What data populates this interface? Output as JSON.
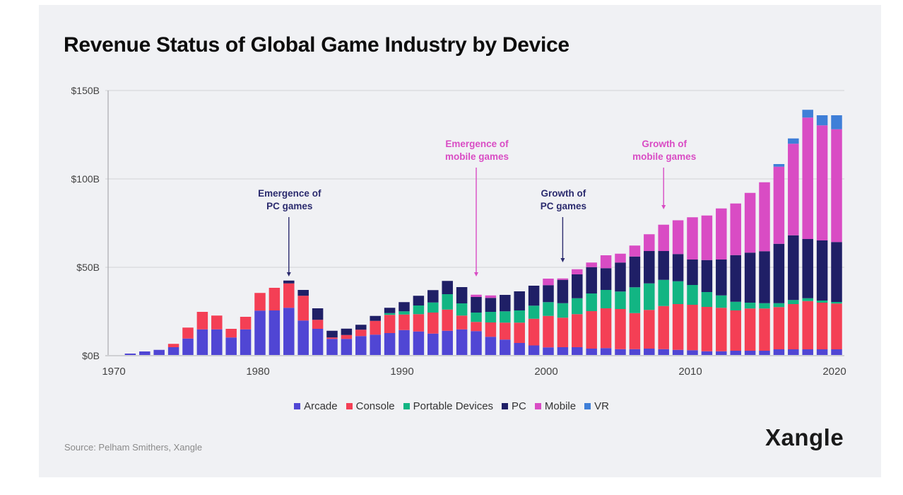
{
  "header": {
    "title": "Revenue Status of Global Game Industry by Device"
  },
  "footer": {
    "source": "Source: Pelham Smithers, Xangle",
    "logo": "Xangle"
  },
  "chart_data": {
    "type": "bar",
    "stacked": true,
    "title": "Revenue Status of Global Game Industry by Device",
    "xlabel": "",
    "ylabel": "",
    "ylim": [
      0,
      150
    ],
    "yticks": [
      0,
      50,
      100,
      150
    ],
    "ytick_labels": [
      "$0B",
      "$50B",
      "$100B",
      "$150B"
    ],
    "xticks": [
      1970,
      1980,
      1990,
      2000,
      2010,
      2020
    ],
    "xtick_labels": [
      "1970",
      "1980",
      "1990",
      "2000",
      "2010",
      "2020"
    ],
    "grid": true,
    "legend_position": "bottom-center",
    "unit": "USD billions",
    "categories": [
      1971,
      1972,
      1973,
      1974,
      1975,
      1976,
      1977,
      1978,
      1979,
      1980,
      1981,
      1982,
      1983,
      1984,
      1985,
      1986,
      1987,
      1988,
      1989,
      1990,
      1991,
      1992,
      1993,
      1994,
      1995,
      1996,
      1997,
      1998,
      1999,
      2000,
      2001,
      2002,
      2003,
      2004,
      2005,
      2006,
      2007,
      2008,
      2009,
      2010,
      2011,
      2012,
      2013,
      2014,
      2015,
      2016,
      2017,
      2018,
      2019,
      2020
    ],
    "series": [
      {
        "name": "Arcade",
        "color": "#5046d4",
        "values": [
          1.2,
          2.4,
          3.3,
          4.8,
          9.7,
          14.9,
          14.9,
          10.3,
          14.9,
          25.5,
          25.6,
          27.1,
          19.9,
          15.2,
          9.5,
          9.5,
          11.1,
          11.9,
          12.8,
          14.5,
          13.7,
          12.5,
          14.1,
          14.9,
          13.9,
          10.7,
          9.1,
          7.2,
          5.8,
          4.7,
          4.8,
          4.8,
          4.0,
          4.3,
          3.7,
          3.7,
          4.0,
          3.7,
          3.3,
          3.1,
          2.5,
          2.5,
          2.8,
          2.8,
          2.8,
          3.6,
          3.6,
          3.6,
          3.6,
          3.6
        ]
      },
      {
        "name": "Console",
        "color": "#f43f55",
        "values": [
          0,
          0,
          0,
          1.9,
          6.2,
          9.9,
          7.8,
          4.9,
          7.1,
          10.0,
          12.8,
          13.8,
          14.0,
          5.1,
          0.8,
          2.2,
          3.6,
          7.8,
          10.3,
          8.8,
          9.8,
          11.9,
          12.0,
          7.8,
          5.2,
          8.1,
          9.6,
          11.5,
          15.1,
          17.8,
          16.7,
          18.7,
          21.2,
          22.5,
          22.7,
          20.4,
          21.9,
          24.4,
          25.9,
          25.7,
          25.1,
          24.6,
          22.8,
          23.9,
          23.9,
          23.9,
          25.6,
          27.3,
          26.4,
          25.9
        ]
      },
      {
        "name": "Portable Devices",
        "color": "#12b583",
        "values": [
          0,
          0,
          0,
          0,
          0,
          0,
          0,
          0,
          0,
          0,
          0,
          0,
          0,
          0,
          0,
          0,
          0,
          0,
          1.0,
          1.8,
          4.9,
          5.7,
          8.7,
          6.9,
          5.3,
          6.0,
          6.4,
          6.9,
          7.4,
          7.8,
          8.2,
          9.0,
          10.0,
          10.4,
          9.9,
          14.6,
          15.0,
          14.8,
          12.9,
          11.2,
          8.4,
          7.0,
          4.9,
          3.3,
          3.0,
          2.2,
          2.3,
          1.6,
          1.2,
          0.9
        ]
      },
      {
        "name": "PC",
        "color": "#1f1f66",
        "values": [
          0,
          0,
          0,
          0,
          0,
          0,
          0,
          0,
          0,
          0,
          0,
          1.6,
          3.3,
          6.5,
          3.8,
          3.6,
          2.8,
          2.8,
          3.0,
          5.2,
          5.5,
          7.0,
          7.5,
          9.2,
          8.8,
          7.9,
          9.3,
          10.8,
          11.3,
          9.6,
          13.2,
          13.5,
          14.9,
          12.3,
          16.4,
          17.4,
          18.3,
          16.3,
          15.4,
          14.4,
          18.1,
          20.3,
          26.4,
          28.3,
          29.4,
          33.6,
          36.6,
          33.5,
          34.0,
          33.9
        ]
      },
      {
        "name": "Mobile",
        "color": "#d94cc4",
        "values": [
          0,
          0,
          0,
          0,
          0,
          0,
          0,
          0,
          0,
          0,
          0,
          0,
          0,
          0,
          0,
          0,
          0,
          0,
          0,
          0,
          0,
          0,
          0,
          0,
          1.3,
          1.4,
          0,
          0,
          0,
          3.7,
          0.8,
          2.9,
          2.6,
          7.3,
          5.0,
          6.2,
          9.5,
          14.9,
          19.1,
          23.9,
          25.2,
          28.9,
          29.2,
          33.8,
          39.0,
          43.6,
          51.8,
          68.7,
          65.1,
          63.8
        ]
      },
      {
        "name": "VR",
        "color": "#3f7fd8",
        "values": [
          0,
          0,
          0,
          0,
          0,
          0,
          0,
          0,
          0,
          0,
          0,
          0,
          0,
          0,
          0,
          0,
          0,
          0,
          0,
          0,
          0,
          0,
          0,
          0,
          0,
          0,
          0,
          0,
          0,
          0,
          0,
          0,
          0,
          0,
          0,
          0,
          0,
          0,
          0,
          0,
          0,
          0,
          0,
          0,
          0,
          1.5,
          3.0,
          4.4,
          5.7,
          7.9
        ]
      }
    ],
    "annotations": [
      {
        "text_lines": [
          "Emergence of",
          "PC games"
        ],
        "year": 1982,
        "color": "#2b2b6e",
        "arrow_to_value": 44
      },
      {
        "text_lines": [
          "Emergence of",
          "mobile games"
        ],
        "year": 1995,
        "color": "#d94cc4",
        "arrow_to_value": 44
      },
      {
        "text_lines": [
          "Growth of",
          "PC games"
        ],
        "year": 2001,
        "color": "#2b2b6e",
        "arrow_to_value": 52
      },
      {
        "text_lines": [
          "Growth of",
          "mobile games"
        ],
        "year": 2008,
        "color": "#d94cc4",
        "arrow_to_value": 82
      }
    ]
  }
}
